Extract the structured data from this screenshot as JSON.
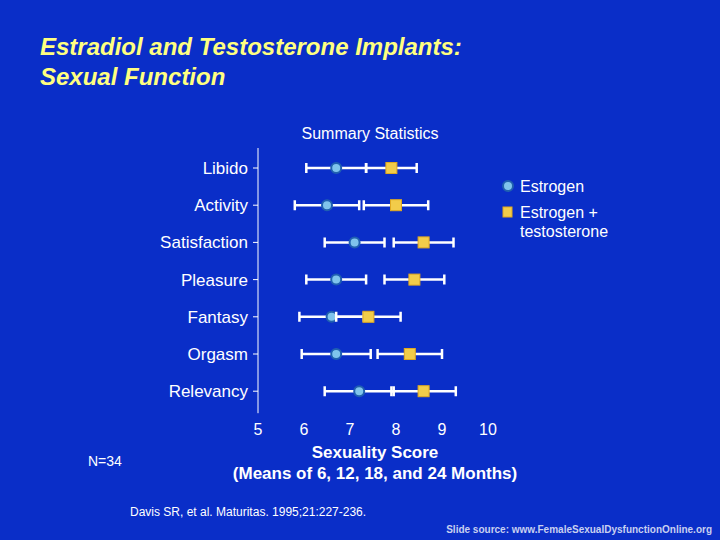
{
  "chart_data": {
    "type": "dot",
    "orientation": "horizontal",
    "title": [
      "Estradiol and Testosterone Implants:",
      "Sexual Function"
    ],
    "subtitle": "Summary Statistics",
    "x_label": [
      "Sexuality Score",
      "(Means of 6, 12, 18, and 24 Months)"
    ],
    "categories": [
      "Libido",
      "Activity",
      "Satisfaction",
      "Pleasure",
      "Fantasy",
      "Orgasm",
      "Relevancy"
    ],
    "series": [
      {
        "name": "Estrogen",
        "color": "#7fc4ec",
        "marker": "circle",
        "values": [
          6.7,
          6.5,
          7.1,
          6.7,
          6.6,
          6.7,
          7.2
        ],
        "errors": [
          0.65,
          0.7,
          0.65,
          0.65,
          0.7,
          0.75,
          0.75
        ]
      },
      {
        "name": "Estrogen + testosterone",
        "color": "#f2cc4a",
        "marker": "square",
        "values": [
          7.9,
          8.0,
          8.6,
          8.4,
          7.4,
          8.3,
          8.6
        ],
        "errors": [
          0.55,
          0.7,
          0.65,
          0.65,
          0.7,
          0.7,
          0.7
        ]
      }
    ],
    "xlim": [
      5,
      10
    ],
    "xticks": [
      5,
      6,
      7,
      8,
      9,
      10
    ],
    "legend": "right",
    "annotations": [
      "N=34",
      "Davis SR, et al. Maturitas. 1995;21:227-236.",
      "Slide source: www.FemaleSexualDysfunctionOnline.org"
    ]
  }
}
